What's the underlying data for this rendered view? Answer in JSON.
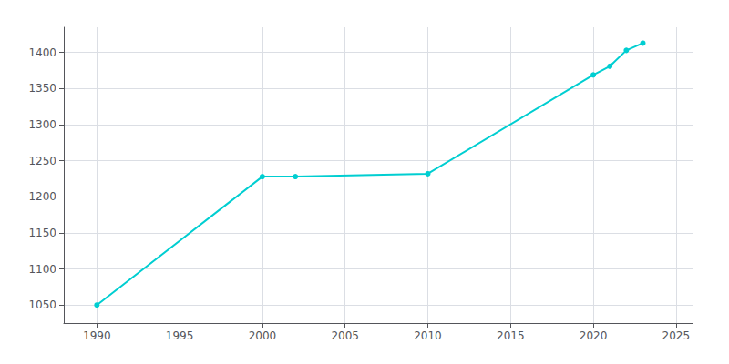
{
  "chart_data": {
    "type": "line",
    "x": [
      1990,
      2000,
      2002,
      2010,
      2020,
      2021,
      2022,
      2023
    ],
    "values": [
      1050,
      1228,
      1228,
      1232,
      1369,
      1381,
      1403,
      1413
    ],
    "color": "#00CED1",
    "marker": "circle",
    "xlim": [
      1988,
      2026
    ],
    "xticks": [
      1990,
      1995,
      2000,
      2005,
      2010,
      2015,
      2020,
      2025
    ],
    "ylim": [
      1025,
      1435
    ],
    "yticks": [
      1050,
      1100,
      1150,
      1200,
      1250,
      1300,
      1350,
      1400
    ],
    "grid": true
  }
}
